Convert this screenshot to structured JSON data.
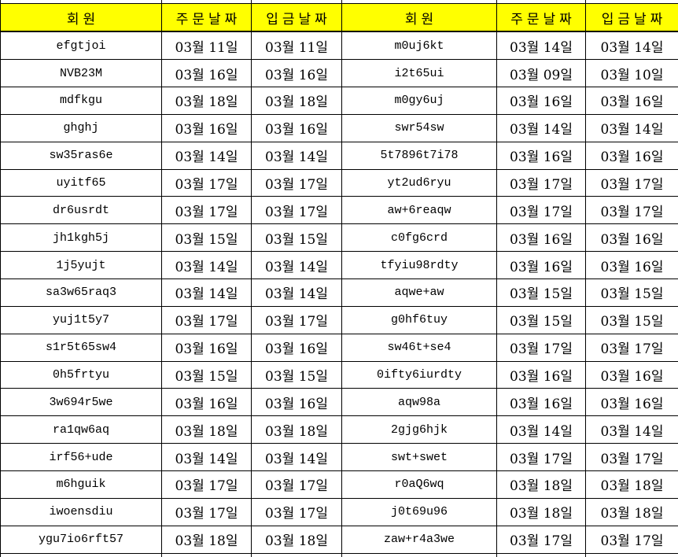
{
  "table": {
    "header_bg": "#ffff00",
    "border_color": "#000000",
    "headers": [
      "회원",
      "주문날짜",
      "입금날짜",
      "회원",
      "주문날짜",
      "입금날짜"
    ],
    "rows": [
      [
        "efgtjoi",
        "03월 11일",
        "03월 11일",
        "m0uj6kt",
        "03월 14일",
        "03월 14일"
      ],
      [
        "NVB23M",
        "03월 16일",
        "03월 16일",
        "i2t65ui",
        "03월 09일",
        "03월 10일"
      ],
      [
        "mdfkgu",
        "03월 18일",
        "03월 18일",
        "m0gy6uj",
        "03월 16일",
        "03월 16일"
      ],
      [
        "ghghj",
        "03월 16일",
        "03월 16일",
        "swr54sw",
        "03월 14일",
        "03월 14일"
      ],
      [
        "sw35ras6e",
        "03월 14일",
        "03월 14일",
        "5t7896t7i78",
        "03월 16일",
        "03월 16일"
      ],
      [
        "uyitf65",
        "03월 17일",
        "03월 17일",
        "yt2ud6ryu",
        "03월 17일",
        "03월 17일"
      ],
      [
        "dr6usrdt",
        "03월 17일",
        "03월 17일",
        "aw+6reaqw",
        "03월 17일",
        "03월 17일"
      ],
      [
        "jh1kgh5j",
        "03월 15일",
        "03월 15일",
        "c0fg6crd",
        "03월 16일",
        "03월 16일"
      ],
      [
        "1j5yujt",
        "03월 14일",
        "03월 14일",
        "tfyiu98rdty",
        "03월 16일",
        "03월 16일"
      ],
      [
        "sa3w65raq3",
        "03월 14일",
        "03월 14일",
        "aqwe+aw",
        "03월 15일",
        "03월 15일"
      ],
      [
        "yuj1t5y7",
        "03월 17일",
        "03월 17일",
        "g0hf6tuy",
        "03월 15일",
        "03월 15일"
      ],
      [
        "s1r5t65sw4",
        "03월 16일",
        "03월 16일",
        "sw46t+se4",
        "03월 17일",
        "03월 17일"
      ],
      [
        "0h5frtyu",
        "03월 15일",
        "03월 15일",
        "0ifty6iurdty",
        "03월 16일",
        "03월 16일"
      ],
      [
        "3w694r5we",
        "03월 16일",
        "03월 16일",
        "aqw98a",
        "03월 16일",
        "03월 16일"
      ],
      [
        "ra1qw6aq",
        "03월 18일",
        "03월 18일",
        "2gjg6hjk",
        "03월 14일",
        "03월 14일"
      ],
      [
        "irf56+ude",
        "03월 14일",
        "03월 14일",
        "swt+swet",
        "03월 17일",
        "03월 17일"
      ],
      [
        "m6hguik",
        "03월 17일",
        "03월 17일",
        "r0aQ6wq",
        "03월 18일",
        "03월 18일"
      ],
      [
        "iwoensdiu",
        "03월 17일",
        "03월 17일",
        "j0t69u96",
        "03월 18일",
        "03월 18일"
      ],
      [
        "ygu7io6rft57",
        "03월 18일",
        "03월 18일",
        "zaw+r4a3we",
        "03월 17일",
        "03월 17일"
      ]
    ]
  }
}
